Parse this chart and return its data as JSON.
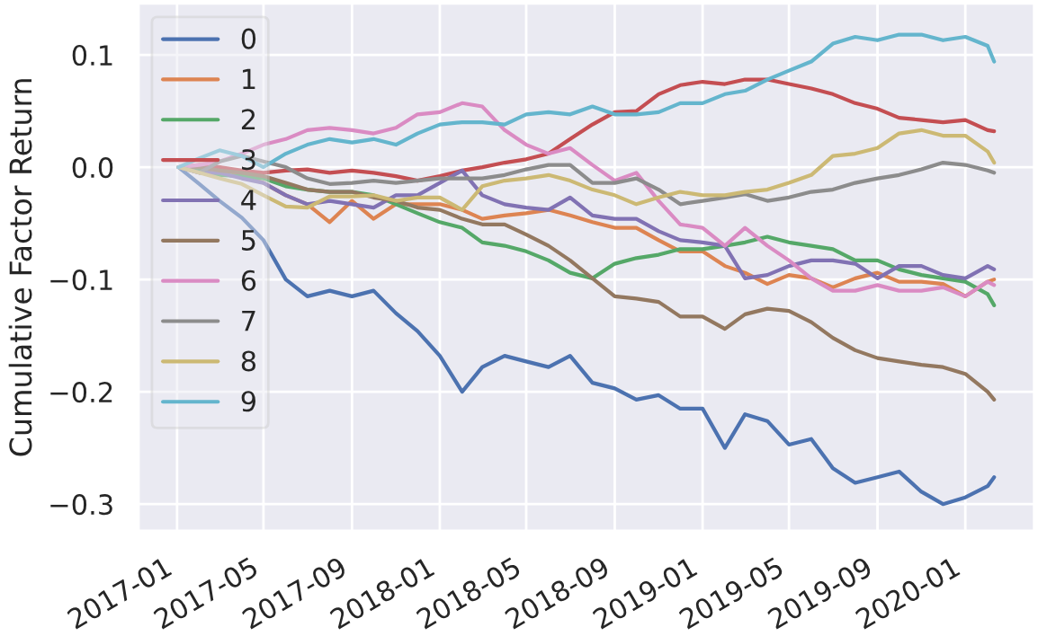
{
  "chart_data": {
    "type": "line",
    "ylabel": "Cumulative Factor Return",
    "x": [
      "2017-01-03",
      "2017-02-01",
      "2017-03-01",
      "2017-04-01",
      "2017-05-01",
      "2017-06-01",
      "2017-07-01",
      "2017-08-01",
      "2017-09-01",
      "2017-10-01",
      "2017-11-01",
      "2017-12-01",
      "2018-01-01",
      "2018-02-01",
      "2018-03-01",
      "2018-04-01",
      "2018-05-01",
      "2018-06-01",
      "2018-07-01",
      "2018-08-01",
      "2018-09-01",
      "2018-10-01",
      "2018-11-01",
      "2018-12-01",
      "2019-01-01",
      "2019-02-01",
      "2019-03-01",
      "2019-04-01",
      "2019-05-01",
      "2019-06-01",
      "2019-07-01",
      "2019-08-01",
      "2019-09-01",
      "2019-10-01",
      "2019-11-01",
      "2019-12-01",
      "2020-01-01",
      "2020-02-01",
      "2020-02-10"
    ],
    "series": [
      {
        "name": "0",
        "color": "#4c72b0",
        "values": [
          0,
          -0.015,
          -0.03,
          -0.045,
          -0.065,
          -0.1,
          -0.115,
          -0.11,
          -0.115,
          -0.11,
          -0.13,
          -0.146,
          -0.168,
          -0.2,
          -0.178,
          -0.168,
          -0.173,
          -0.178,
          -0.168,
          -0.192,
          -0.197,
          -0.207,
          -0.203,
          -0.215,
          -0.215,
          -0.25,
          -0.22,
          -0.226,
          -0.247,
          -0.242,
          -0.268,
          -0.281,
          -0.276,
          -0.271,
          -0.289,
          -0.3,
          -0.294,
          -0.284,
          -0.276
        ]
      },
      {
        "name": "1",
        "color": "#dd8452",
        "values": [
          0,
          -0.005,
          0.0,
          -0.008,
          -0.014,
          -0.025,
          -0.033,
          -0.049,
          -0.03,
          -0.046,
          -0.033,
          -0.033,
          -0.033,
          -0.038,
          -0.046,
          -0.043,
          -0.041,
          -0.038,
          -0.043,
          -0.049,
          -0.054,
          -0.054,
          -0.065,
          -0.075,
          -0.075,
          -0.088,
          -0.094,
          -0.104,
          -0.096,
          -0.099,
          -0.107,
          -0.099,
          -0.094,
          -0.102,
          -0.102,
          -0.104,
          -0.115,
          -0.102,
          -0.1
        ]
      },
      {
        "name": "2",
        "color": "#55a868",
        "values": [
          0,
          -0.003,
          -0.007,
          -0.008,
          -0.01,
          -0.017,
          -0.02,
          -0.022,
          -0.022,
          -0.025,
          -0.033,
          -0.041,
          -0.049,
          -0.054,
          -0.067,
          -0.07,
          -0.075,
          -0.083,
          -0.094,
          -0.099,
          -0.086,
          -0.081,
          -0.078,
          -0.073,
          -0.073,
          -0.07,
          -0.067,
          -0.062,
          -0.067,
          -0.07,
          -0.073,
          -0.083,
          -0.083,
          -0.091,
          -0.096,
          -0.099,
          -0.102,
          -0.113,
          -0.123
        ]
      },
      {
        "name": "3",
        "color": "#c44e52",
        "values": [
          0,
          0.002,
          0.0,
          -0.003,
          -0.005,
          -0.003,
          -0.002,
          -0.005,
          -0.003,
          -0.005,
          -0.008,
          -0.012,
          -0.008,
          -0.003,
          0.0,
          0.004,
          0.007,
          0.012,
          0.025,
          0.038,
          0.049,
          0.05,
          0.065,
          0.073,
          0.076,
          0.074,
          0.078,
          0.078,
          0.074,
          0.07,
          0.065,
          0.057,
          0.052,
          0.044,
          0.042,
          0.04,
          0.042,
          0.033,
          0.032
        ]
      },
      {
        "name": "4",
        "color": "#8172b3",
        "values": [
          0,
          -0.005,
          -0.005,
          -0.01,
          -0.014,
          -0.025,
          -0.033,
          -0.03,
          -0.033,
          -0.036,
          -0.025,
          -0.025,
          -0.014,
          -0.003,
          -0.025,
          -0.033,
          -0.036,
          -0.038,
          -0.027,
          -0.043,
          -0.046,
          -0.046,
          -0.057,
          -0.065,
          -0.067,
          -0.07,
          -0.099,
          -0.096,
          -0.088,
          -0.083,
          -0.083,
          -0.086,
          -0.099,
          -0.088,
          -0.088,
          -0.096,
          -0.099,
          -0.088,
          -0.091
        ]
      },
      {
        "name": "5",
        "color": "#937860",
        "values": [
          0,
          0.0,
          -0.003,
          -0.005,
          -0.008,
          -0.014,
          -0.02,
          -0.022,
          -0.022,
          -0.027,
          -0.03,
          -0.036,
          -0.038,
          -0.046,
          -0.051,
          -0.051,
          -0.06,
          -0.07,
          -0.083,
          -0.099,
          -0.115,
          -0.117,
          -0.12,
          -0.133,
          -0.133,
          -0.144,
          -0.131,
          -0.126,
          -0.128,
          -0.138,
          -0.152,
          -0.163,
          -0.17,
          -0.173,
          -0.176,
          -0.178,
          -0.184,
          -0.2,
          -0.207
        ]
      },
      {
        "name": "6",
        "color": "#da8bc3",
        "values": [
          0,
          0.002,
          0.005,
          0.012,
          0.02,
          0.025,
          0.033,
          0.035,
          0.033,
          0.03,
          0.035,
          0.047,
          0.049,
          0.057,
          0.054,
          0.033,
          0.02,
          0.012,
          0.017,
          0.002,
          -0.012,
          -0.005,
          -0.03,
          -0.051,
          -0.054,
          -0.07,
          -0.054,
          -0.07,
          -0.083,
          -0.099,
          -0.11,
          -0.11,
          -0.105,
          -0.11,
          -0.11,
          -0.107,
          -0.115,
          -0.102,
          -0.105
        ]
      },
      {
        "name": "7",
        "color": "#8c8c8c",
        "values": [
          0,
          -0.005,
          0.005,
          0.01,
          0.005,
          0.0,
          -0.01,
          -0.015,
          -0.014,
          -0.012,
          -0.014,
          -0.012,
          -0.01,
          -0.01,
          -0.01,
          -0.007,
          -0.002,
          0.002,
          0.002,
          -0.014,
          -0.014,
          -0.01,
          -0.02,
          -0.033,
          -0.03,
          -0.027,
          -0.024,
          -0.03,
          -0.027,
          -0.022,
          -0.02,
          -0.014,
          -0.01,
          -0.007,
          -0.002,
          0.004,
          0.002,
          -0.003,
          -0.005
        ]
      },
      {
        "name": "8",
        "color": "#ccb974",
        "values": [
          0,
          -0.005,
          -0.01,
          -0.015,
          -0.025,
          -0.035,
          -0.036,
          -0.026,
          -0.026,
          -0.025,
          -0.03,
          -0.027,
          -0.027,
          -0.038,
          -0.017,
          -0.012,
          -0.01,
          -0.007,
          -0.012,
          -0.02,
          -0.025,
          -0.033,
          -0.027,
          -0.022,
          -0.025,
          -0.025,
          -0.022,
          -0.02,
          -0.014,
          -0.007,
          0.01,
          0.012,
          0.017,
          0.03,
          0.033,
          0.028,
          0.028,
          0.014,
          0.004
        ]
      },
      {
        "name": "9",
        "color": "#64b5cd",
        "values": [
          0,
          0.008,
          0.015,
          0.01,
          0.0,
          0.012,
          0.02,
          0.025,
          0.022,
          0.025,
          0.02,
          0.03,
          0.038,
          0.04,
          0.04,
          0.038,
          0.047,
          0.049,
          0.047,
          0.054,
          0.047,
          0.047,
          0.049,
          0.057,
          0.057,
          0.065,
          0.068,
          0.078,
          0.086,
          0.094,
          0.11,
          0.116,
          0.113,
          0.118,
          0.118,
          0.113,
          0.116,
          0.108,
          0.094
        ]
      }
    ],
    "xlim": [
      "2016-11-08",
      "2020-04-06"
    ],
    "xticks": [
      "2017-01",
      "2017-05",
      "2017-09",
      "2018-01",
      "2018-05",
      "2018-09",
      "2019-01",
      "2019-05",
      "2019-09",
      "2020-01"
    ],
    "ylim": [
      -0.324,
      0.146
    ],
    "yticks": [
      {
        "value": -0.3,
        "label": "−0.3"
      },
      {
        "value": -0.2,
        "label": "−0.2"
      },
      {
        "value": -0.1,
        "label": "−0.1"
      },
      {
        "value": 0.0,
        "label": "0.0"
      },
      {
        "value": 0.1,
        "label": "0.1"
      }
    ],
    "grid": true,
    "legend": "top left",
    "marker": "none",
    "line_style": "solid"
  }
}
